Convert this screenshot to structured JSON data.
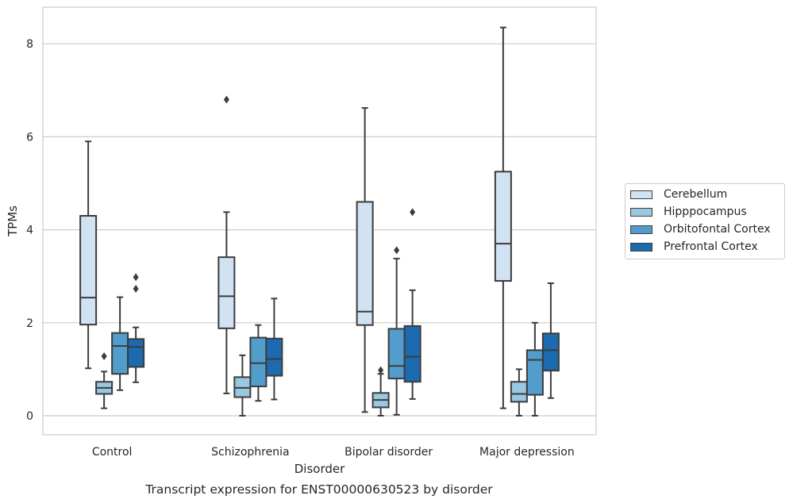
{
  "chart_data": {
    "type": "box",
    "title": "Transcript expression for ENST00000630523 by disorder",
    "xlabel": "Disorder",
    "ylabel": "TPMs",
    "ylim": [
      -0.4,
      8.8
    ],
    "yticks": [
      0,
      2,
      4,
      6,
      8
    ],
    "grid": "horizontal",
    "legend_position": "right",
    "categories": [
      "Control",
      "Schizophrenia",
      "Bipolar disorder",
      "Major depression"
    ],
    "series": [
      {
        "name": "Cerebellum",
        "color": "#d1e2f2",
        "boxes": [
          {
            "whisker_low": 1.02,
            "q1": 1.96,
            "median": 2.54,
            "q3": 4.3,
            "whisker_high": 5.9,
            "outliers": []
          },
          {
            "whisker_low": 0.48,
            "q1": 1.88,
            "median": 2.57,
            "q3": 3.41,
            "whisker_high": 4.38,
            "outliers": [
              6.8
            ]
          },
          {
            "whisker_low": 0.08,
            "q1": 1.95,
            "median": 2.24,
            "q3": 4.6,
            "whisker_high": 6.62,
            "outliers": []
          },
          {
            "whisker_low": 0.16,
            "q1": 2.9,
            "median": 3.7,
            "q3": 5.25,
            "whisker_high": 8.35,
            "outliers": []
          }
        ]
      },
      {
        "name": "Hipppocampus",
        "color": "#9ac8e0",
        "boxes": [
          {
            "whisker_low": 0.16,
            "q1": 0.47,
            "median": 0.6,
            "q3": 0.73,
            "whisker_high": 0.95,
            "outliers": [
              1.28
            ]
          },
          {
            "whisker_low": 0.0,
            "q1": 0.4,
            "median": 0.6,
            "q3": 0.83,
            "whisker_high": 1.3,
            "outliers": []
          },
          {
            "whisker_low": 0.0,
            "q1": 0.18,
            "median": 0.34,
            "q3": 0.49,
            "whisker_high": 0.9,
            "outliers": [
              0.98
            ]
          },
          {
            "whisker_low": 0.0,
            "q1": 0.3,
            "median": 0.47,
            "q3": 0.73,
            "whisker_high": 1.0,
            "outliers": []
          }
        ]
      },
      {
        "name": "Orbitofontal Cortex",
        "color": "#529dcc",
        "boxes": [
          {
            "whisker_low": 0.55,
            "q1": 0.9,
            "median": 1.5,
            "q3": 1.78,
            "whisker_high": 2.55,
            "outliers": []
          },
          {
            "whisker_low": 0.32,
            "q1": 0.63,
            "median": 1.13,
            "q3": 1.68,
            "whisker_high": 1.95,
            "outliers": []
          },
          {
            "whisker_low": 0.02,
            "q1": 0.8,
            "median": 1.07,
            "q3": 1.87,
            "whisker_high": 3.38,
            "outliers": [
              3.56
            ]
          },
          {
            "whisker_low": 0.0,
            "q1": 0.45,
            "median": 1.2,
            "q3": 1.41,
            "whisker_high": 2.0,
            "outliers": []
          }
        ]
      },
      {
        "name": "Prefrontal Cortex",
        "color": "#1c6aaf",
        "boxes": [
          {
            "whisker_low": 0.72,
            "q1": 1.05,
            "median": 1.48,
            "q3": 1.65,
            "whisker_high": 1.9,
            "outliers": [
              2.73,
              2.98
            ]
          },
          {
            "whisker_low": 0.35,
            "q1": 0.86,
            "median": 1.22,
            "q3": 1.66,
            "whisker_high": 2.52,
            "outliers": []
          },
          {
            "whisker_low": 0.36,
            "q1": 0.73,
            "median": 1.27,
            "q3": 1.93,
            "whisker_high": 2.7,
            "outliers": [
              4.38
            ]
          },
          {
            "whisker_low": 0.38,
            "q1": 0.97,
            "median": 1.41,
            "q3": 1.77,
            "whisker_high": 2.85,
            "outliers": []
          }
        ]
      }
    ]
  }
}
